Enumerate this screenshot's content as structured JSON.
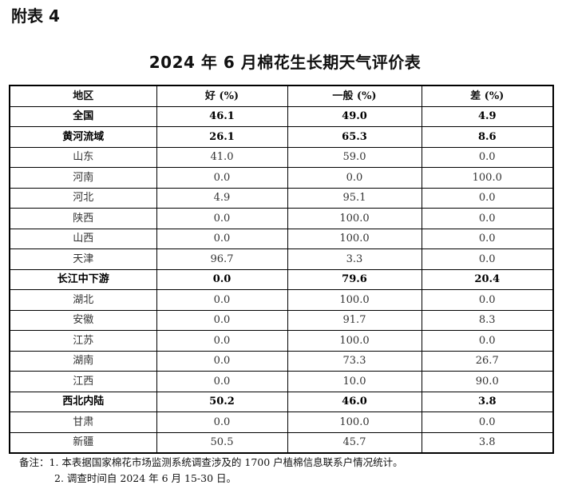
{
  "appendix_label": "附表 4",
  "title": "2024 年 6 月棉花生长期天气评价表",
  "table": {
    "headers": [
      "地区",
      "好 (%)",
      "一般 (%)",
      "差 (%)"
    ],
    "rows": [
      {
        "region": "全国",
        "good": "46.1",
        "normal": "49.0",
        "poor": "4.9",
        "bold": true
      },
      {
        "region": "黄河流域",
        "good": "26.1",
        "normal": "65.3",
        "poor": "8.6",
        "bold": true
      },
      {
        "region": "山东",
        "good": "41.0",
        "normal": "59.0",
        "poor": "0.0",
        "bold": false
      },
      {
        "region": "河南",
        "good": "0.0",
        "normal": "0.0",
        "poor": "100.0",
        "bold": false
      },
      {
        "region": "河北",
        "good": "4.9",
        "normal": "95.1",
        "poor": "0.0",
        "bold": false
      },
      {
        "region": "陕西",
        "good": "0.0",
        "normal": "100.0",
        "poor": "0.0",
        "bold": false
      },
      {
        "region": "山西",
        "good": "0.0",
        "normal": "100.0",
        "poor": "0.0",
        "bold": false
      },
      {
        "region": "天津",
        "good": "96.7",
        "normal": "3.3",
        "poor": "0.0",
        "bold": false
      },
      {
        "region": "长江中下游",
        "good": "0.0",
        "normal": "79.6",
        "poor": "20.4",
        "bold": true
      },
      {
        "region": "湖北",
        "good": "0.0",
        "normal": "100.0",
        "poor": "0.0",
        "bold": false
      },
      {
        "region": "安徽",
        "good": "0.0",
        "normal": "91.7",
        "poor": "8.3",
        "bold": false
      },
      {
        "region": "江苏",
        "good": "0.0",
        "normal": "100.0",
        "poor": "0.0",
        "bold": false
      },
      {
        "region": "湖南",
        "good": "0.0",
        "normal": "73.3",
        "poor": "26.7",
        "bold": false
      },
      {
        "region": "江西",
        "good": "0.0",
        "normal": "10.0",
        "poor": "90.0",
        "bold": false
      },
      {
        "region": "西北内陆",
        "good": "50.2",
        "normal": "46.0",
        "poor": "3.8",
        "bold": true
      },
      {
        "region": "甘肃",
        "good": "0.0",
        "normal": "100.0",
        "poor": "0.0",
        "bold": false
      },
      {
        "region": "新疆",
        "good": "50.5",
        "normal": "45.7",
        "poor": "3.8",
        "bold": false
      }
    ]
  },
  "notes": {
    "line1": "备注：1. 本表据国家棉花市场监测系统调查涉及的 1700 户植棉信息联系户情况统计。",
    "line2": "2. 调查时间自 2024 年 6 月 15-30 日。"
  }
}
